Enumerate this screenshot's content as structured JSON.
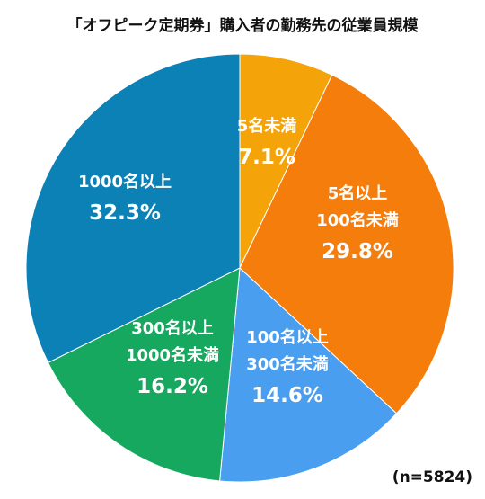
{
  "chart_data": {
    "type": "pie",
    "title": "「オフピーク定期券」購入者の勤務先の従業員規模",
    "note": "(n=5824)",
    "slices": [
      {
        "label_lines": [
          "5名未満"
        ],
        "value_label": "7.1%",
        "value": 7.1,
        "color": "#f4a308"
      },
      {
        "label_lines": [
          "5名以上",
          "100名未満"
        ],
        "value_label": "29.8%",
        "value": 29.8,
        "color": "#f47d0c"
      },
      {
        "label_lines": [
          "100名以上",
          "300名未満"
        ],
        "value_label": "14.6%",
        "value": 14.6,
        "color": "#4a9ef0"
      },
      {
        "label_lines": [
          "300名以上",
          "1000名未満"
        ],
        "value_label": "16.2%",
        "value": 16.2,
        "color": "#16a85e"
      },
      {
        "label_lines": [
          "1000名以上"
        ],
        "value_label": "32.3%",
        "value": 32.3,
        "color": "#0b81b5"
      }
    ]
  }
}
